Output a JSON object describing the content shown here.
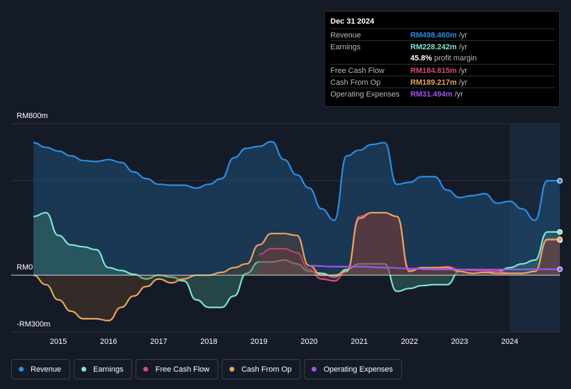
{
  "tooltip": {
    "date": "Dec 31 2024",
    "rows": [
      {
        "label": "Revenue",
        "value": "RM498.460m",
        "unit": "/yr",
        "color": "#2b8ee6"
      },
      {
        "label": "Earnings",
        "value": "RM228.242m",
        "unit": "/yr",
        "color": "#7de8d0"
      },
      {
        "label": "",
        "value": "45.8%",
        "unit": "profit margin",
        "color": "#ffffff"
      },
      {
        "label": "Free Cash Flow",
        "value": "RM184.815m",
        "unit": "/yr",
        "color": "#d9487f"
      },
      {
        "label": "Cash From Op",
        "value": "RM189.217m",
        "unit": "/yr",
        "color": "#e9a55b"
      },
      {
        "label": "Operating Expenses",
        "value": "RM31.494m",
        "unit": "/yr",
        "color": "#a155f0"
      }
    ]
  },
  "legend": [
    {
      "label": "Revenue",
      "color": "#2b8ee6"
    },
    {
      "label": "Earnings",
      "color": "#7de8d0"
    },
    {
      "label": "Free Cash Flow",
      "color": "#d9487f"
    },
    {
      "label": "Cash From Op",
      "color": "#e9a55b"
    },
    {
      "label": "Operating Expenses",
      "color": "#a155f0"
    }
  ],
  "chart_data": {
    "type": "area",
    "title": "",
    "x_unit": "year",
    "y_unit": "RM m",
    "ylim": [
      -300,
      800
    ],
    "y_axis_labels": [
      "RM800m",
      "RM0",
      "-RM300m"
    ],
    "x_ticks": [
      2015,
      2016,
      2017,
      2018,
      2019,
      2020,
      2021,
      2022,
      2023,
      2024
    ],
    "x_range": [
      2014.5,
      2025.0
    ],
    "forecast_shade_from": 2024.0,
    "series": [
      {
        "name": "Revenue",
        "color": "#2b8ee6",
        "x": [
          2014.5,
          2014.75,
          2015.0,
          2015.25,
          2015.5,
          2015.75,
          2016.0,
          2016.25,
          2016.5,
          2016.75,
          2017.0,
          2017.25,
          2017.5,
          2017.75,
          2018.0,
          2018.25,
          2018.5,
          2018.75,
          2019.0,
          2019.25,
          2019.5,
          2019.75,
          2020.0,
          2020.25,
          2020.5,
          2020.75,
          2021.0,
          2021.25,
          2021.5,
          2021.75,
          2022.0,
          2022.25,
          2022.5,
          2022.75,
          2023.0,
          2023.25,
          2023.5,
          2023.75,
          2024.0,
          2024.25,
          2024.5,
          2024.75,
          2025.0
        ],
        "values": [
          700,
          675,
          655,
          630,
          605,
          600,
          610,
          595,
          545,
          510,
          480,
          475,
          475,
          460,
          480,
          510,
          620,
          670,
          680,
          705,
          610,
          530,
          460,
          350,
          290,
          630,
          660,
          690,
          700,
          480,
          490,
          520,
          520,
          450,
          410,
          420,
          430,
          380,
          390,
          350,
          290,
          498.46,
          498.46
        ]
      },
      {
        "name": "Earnings",
        "color": "#7de8d0",
        "x": [
          2014.5,
          2014.75,
          2015.0,
          2015.25,
          2015.5,
          2015.75,
          2016.0,
          2016.25,
          2016.5,
          2016.75,
          2017.0,
          2017.25,
          2017.5,
          2017.75,
          2018.0,
          2018.25,
          2018.5,
          2018.75,
          2019.0,
          2019.25,
          2019.5,
          2019.75,
          2020.0,
          2020.25,
          2020.5,
          2020.75,
          2021.0,
          2021.25,
          2021.5,
          2021.75,
          2022.0,
          2022.25,
          2022.5,
          2022.75,
          2023.0,
          2023.25,
          2023.5,
          2023.75,
          2024.0,
          2024.25,
          2024.5,
          2024.75,
          2025.0
        ],
        "values": [
          310,
          330,
          210,
          160,
          150,
          135,
          40,
          25,
          5,
          -20,
          0,
          -10,
          -30,
          -130,
          -170,
          -170,
          -110,
          10,
          70,
          70,
          80,
          60,
          20,
          10,
          -10,
          30,
          60,
          60,
          60,
          -85,
          -70,
          -55,
          -50,
          -50,
          20,
          10,
          15,
          20,
          40,
          60,
          80,
          228.242,
          228.242
        ]
      },
      {
        "name": "Free Cash Flow",
        "color": "#d9487f",
        "x": [
          2019.0,
          2019.25,
          2019.5,
          2019.75,
          2020.0,
          2020.25,
          2020.5,
          2020.75,
          2021.0,
          2021.25,
          2021.5,
          2021.75,
          2022.0,
          2022.25,
          2022.5,
          2022.75,
          2023.0,
          2023.25,
          2023.5,
          2023.75,
          2024.0,
          2024.25,
          2024.5,
          2024.75,
          2025.0
        ],
        "values": [
          110,
          140,
          140,
          120,
          30,
          -20,
          -30,
          20,
          310,
          330,
          330,
          310,
          30,
          40,
          40,
          45,
          30,
          25,
          25,
          20,
          10,
          10,
          20,
          184.815,
          184.815
        ]
      },
      {
        "name": "Cash From Op",
        "color": "#e9a55b",
        "x": [
          2014.5,
          2014.75,
          2015.0,
          2015.25,
          2015.5,
          2015.75,
          2016.0,
          2016.25,
          2016.5,
          2016.75,
          2017.0,
          2017.25,
          2017.5,
          2017.75,
          2018.0,
          2018.25,
          2018.5,
          2018.75,
          2019.0,
          2019.25,
          2019.5,
          2019.75,
          2020.0,
          2020.25,
          2020.5,
          2020.75,
          2021.0,
          2021.25,
          2021.5,
          2021.75,
          2022.0,
          2022.25,
          2022.5,
          2022.75,
          2023.0,
          2023.25,
          2023.5,
          2023.75,
          2024.0,
          2024.25,
          2024.5,
          2024.75,
          2025.0
        ],
        "values": [
          0,
          -50,
          -130,
          -190,
          -230,
          -230,
          -240,
          -170,
          -110,
          -60,
          -20,
          -40,
          -20,
          0,
          0,
          15,
          40,
          60,
          160,
          220,
          220,
          210,
          50,
          0,
          0,
          20,
          300,
          330,
          330,
          310,
          20,
          40,
          40,
          40,
          20,
          10,
          15,
          10,
          10,
          10,
          20,
          189.217,
          189.217
        ]
      },
      {
        "name": "Operating Expenses",
        "color": "#a155f0",
        "x": [
          2020.0,
          2020.5,
          2021.0,
          2021.5,
          2022.0,
          2022.5,
          2023.0,
          2023.5,
          2024.0,
          2024.5,
          2025.0
        ],
        "values": [
          50,
          45,
          45,
          40,
          35,
          30,
          30,
          30,
          30,
          31.494,
          31.494
        ]
      }
    ]
  }
}
